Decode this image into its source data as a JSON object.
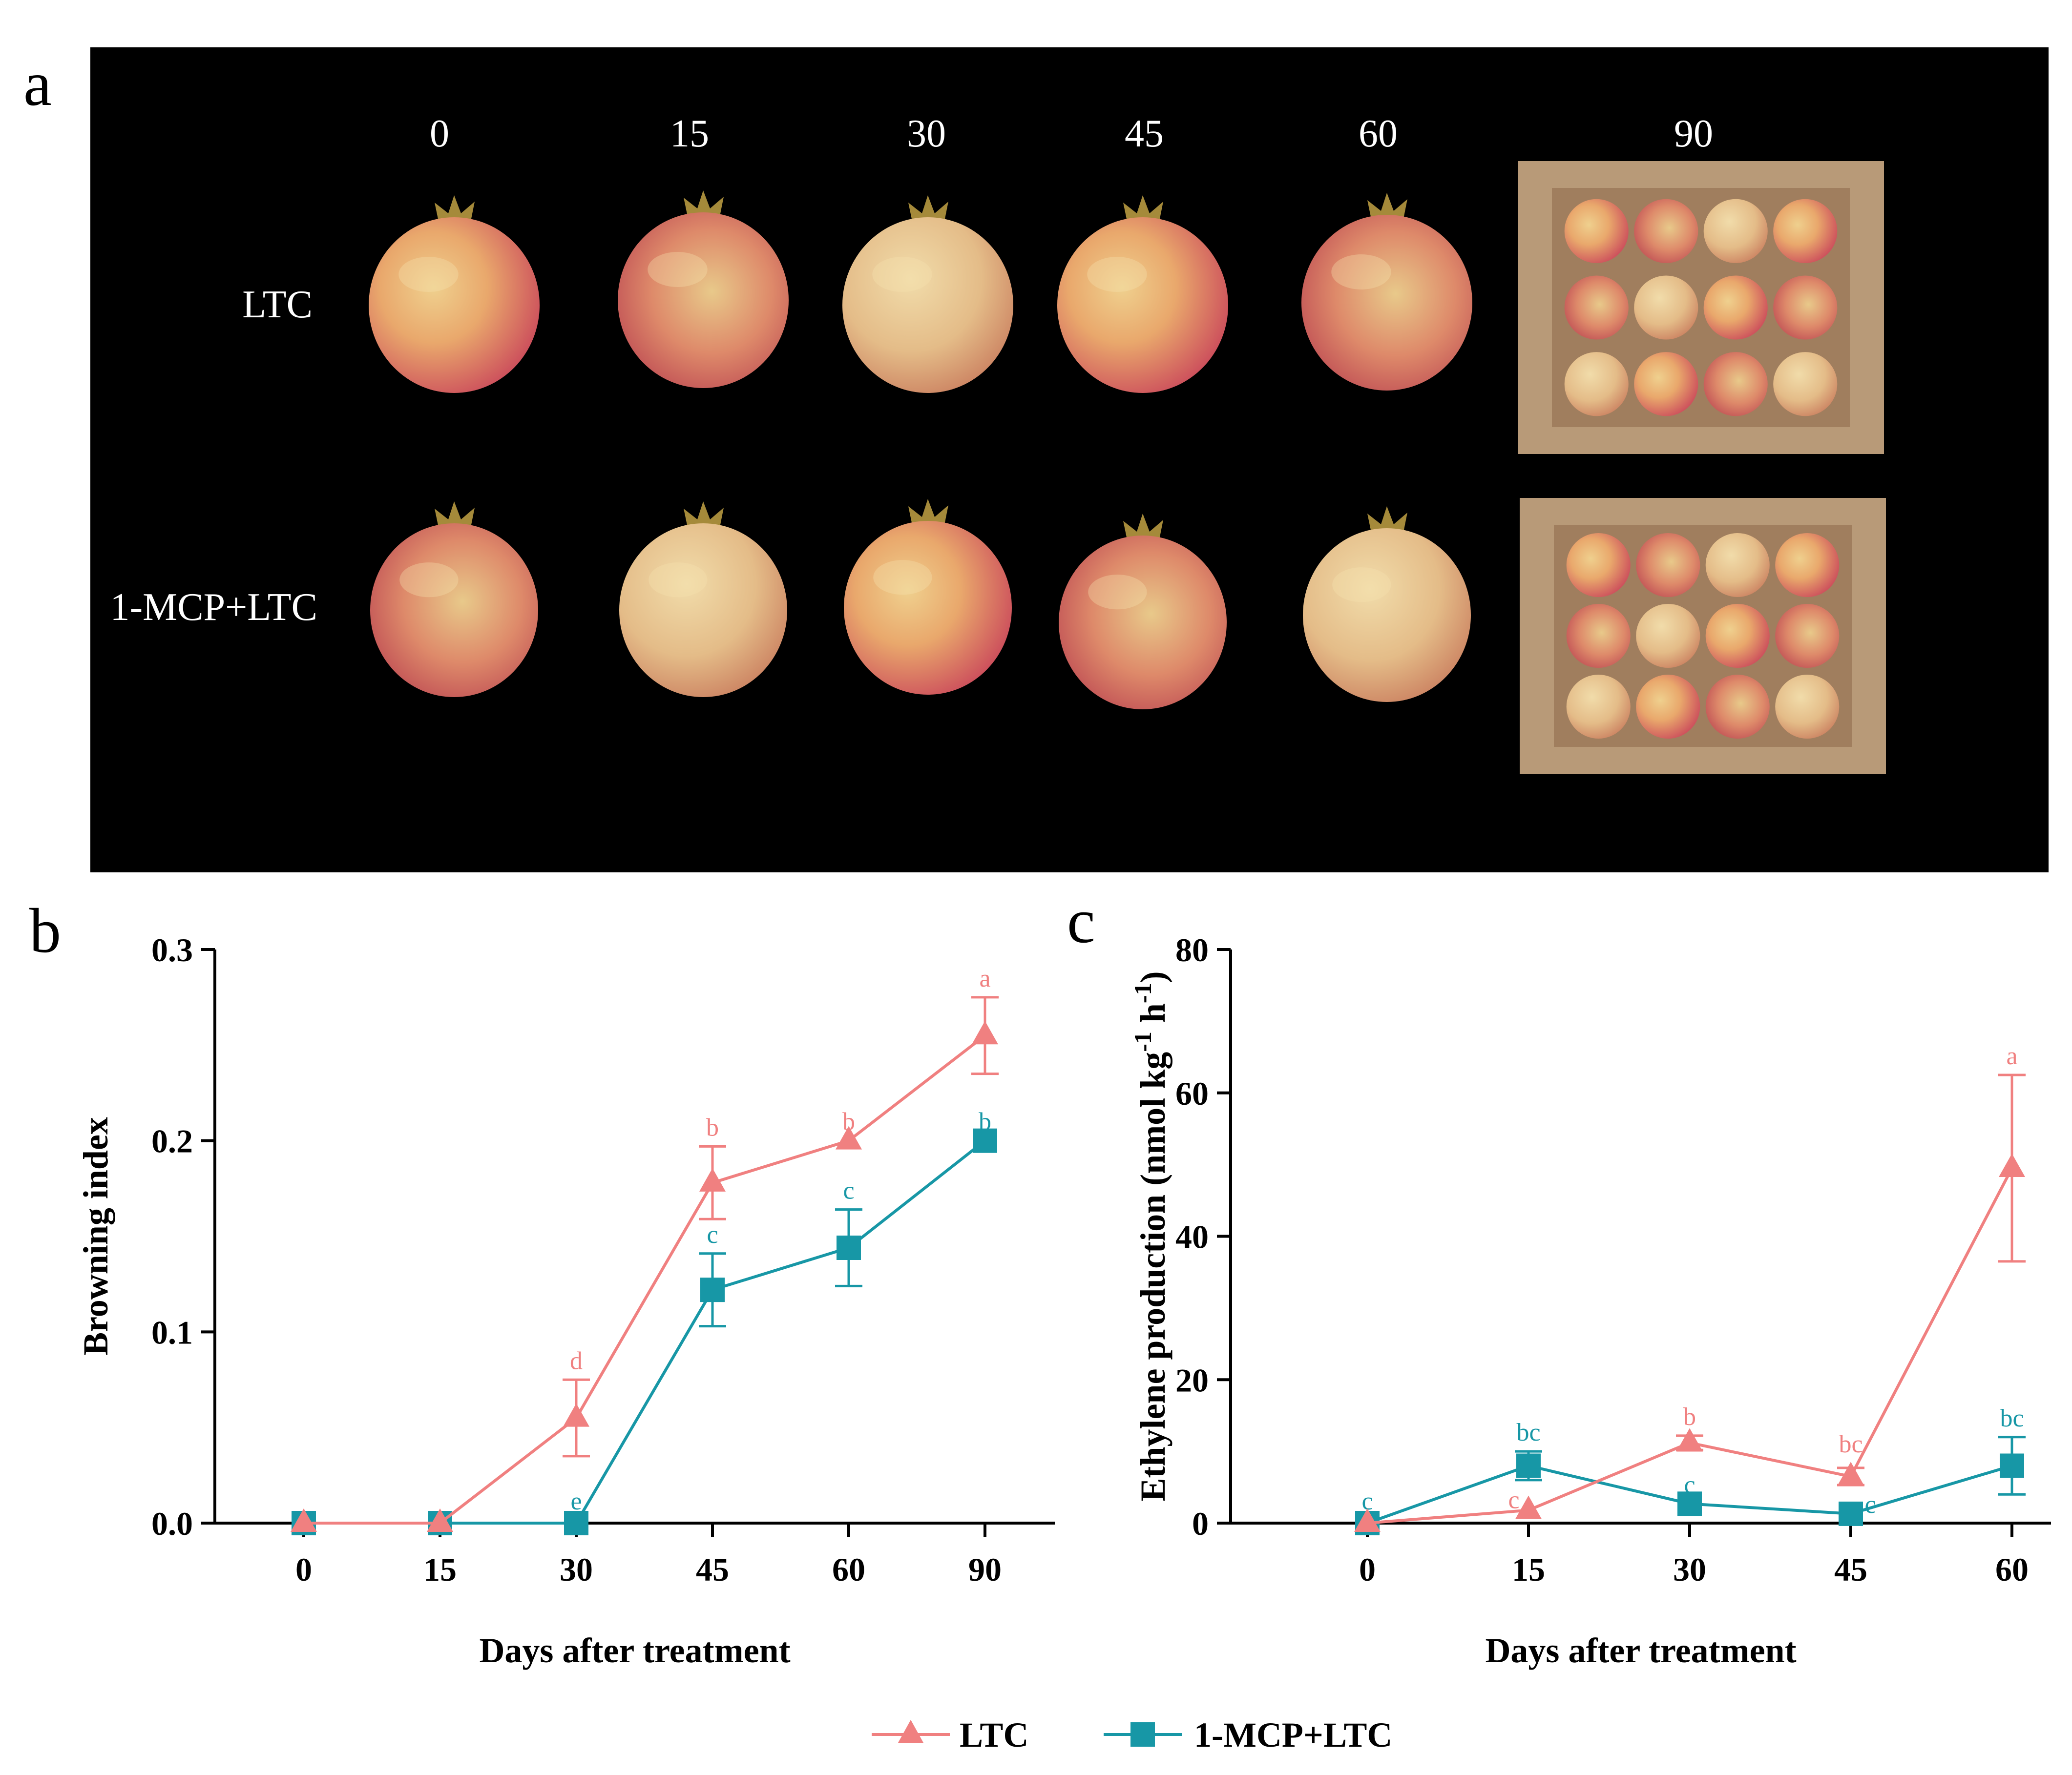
{
  "colors": {
    "ltc": "#f08080",
    "mcp": "#1797a6",
    "photo_bg": "#000000"
  },
  "panel_a": {
    "letter": "a",
    "days": [
      "0",
      "15",
      "30",
      "45",
      "60",
      "90"
    ],
    "rows": [
      "LTC",
      "1-MCP+LTC"
    ]
  },
  "legend": {
    "ltc": "LTC",
    "mcp": "1-MCP+LTC"
  },
  "chart_data": [
    {
      "type": "line",
      "letter": "b",
      "categories": [
        "0",
        "15",
        "30",
        "45",
        "60",
        "90"
      ],
      "ylim": [
        0,
        0.3
      ],
      "yticks": [
        "0.0",
        "0.1",
        "0.2",
        "0.3"
      ],
      "ylabel": "Browning index",
      "xlabel": "Days after treatment",
      "series": [
        {
          "name": "LTC",
          "key": "ltc",
          "marker": "triangle",
          "values": [
            0,
            0,
            0.055,
            0.178,
            0.2,
            0.255
          ],
          "errors": [
            0,
            0,
            0.02,
            0.019,
            0,
            0.02
          ],
          "letters": [
            "",
            "",
            "d",
            "b",
            "b",
            "a"
          ]
        },
        {
          "name": "1-MCP+LTC",
          "key": "mcp",
          "marker": "square",
          "values": [
            0,
            0,
            0,
            0.122,
            0.144,
            0.2
          ],
          "errors": [
            0,
            0,
            0,
            0.019,
            0.02,
            0
          ],
          "letters": [
            "",
            "",
            "e",
            "c",
            "c",
            "b"
          ]
        }
      ]
    },
    {
      "type": "line",
      "letter": "c",
      "categories": [
        "0",
        "15",
        "30",
        "45",
        "60"
      ],
      "ylim": [
        0,
        80
      ],
      "yticks": [
        "0",
        "20",
        "40",
        "60",
        "80"
      ],
      "ylabel": "Ethylene production (nmol kg-1 h-1)",
      "ylabel_parts": {
        "pre": "Ethylene production (nmol kg",
        "sup1": "-1",
        "mid": " h",
        "sup2": "-1",
        "post": ")"
      },
      "xlabel": "Days after treatment",
      "series": [
        {
          "name": "LTC",
          "key": "ltc",
          "marker": "triangle",
          "values": [
            0,
            1.8,
            11.2,
            6.5,
            49.5
          ],
          "errors": [
            0,
            0,
            1.0,
            1.2,
            13
          ],
          "letters": [
            "",
            "c",
            "b",
            "bc",
            "a"
          ]
        },
        {
          "name": "1-MCP+LTC",
          "key": "mcp",
          "marker": "square",
          "values": [
            0,
            8,
            2.7,
            1.3,
            8
          ],
          "errors": [
            0,
            2,
            0,
            0,
            4
          ],
          "letters": [
            "c",
            "bc",
            "c",
            "c",
            "bc"
          ]
        }
      ]
    }
  ]
}
